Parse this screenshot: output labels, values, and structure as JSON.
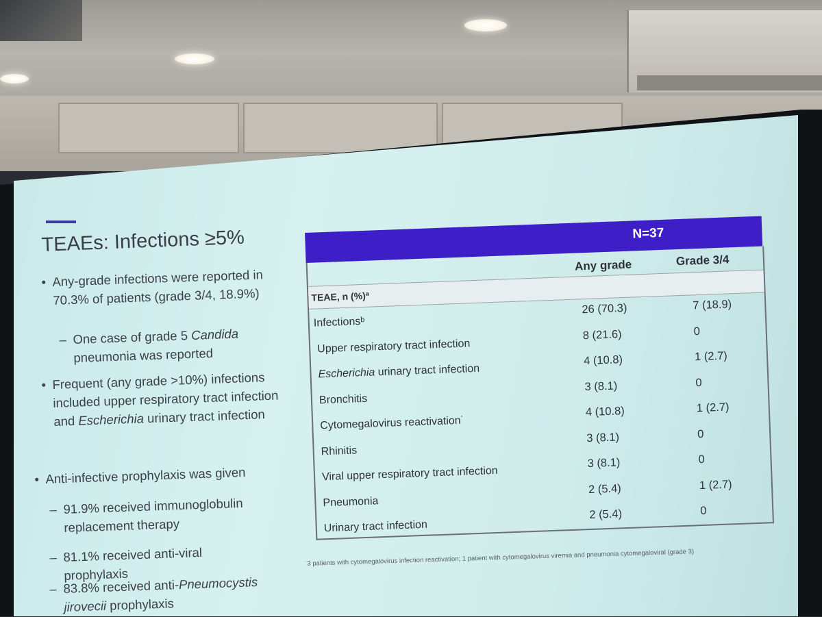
{
  "slide": {
    "title": "TEAEs: Infections ≥5%",
    "bullets": [
      {
        "level": 1,
        "text": "Any-grade infections were reported in 70.3% of patients (grade 3/4, 18.9%)"
      },
      {
        "level": 2,
        "text_before": "One case of grade 5 ",
        "italic": "Candida",
        "text_after": " pneumonia was reported"
      },
      {
        "level": 1,
        "text_before": "Frequent (any grade >10%) infections included upper respiratory tract infection and ",
        "italic": "Escherichia",
        "text_after": " urinary tract infection"
      },
      {
        "level": 1,
        "text": "Anti-infective prophylaxis was given"
      },
      {
        "level": 2,
        "text": "91.9% received immunoglobulin replacement therapy"
      },
      {
        "level": 2,
        "text": "81.1% received anti-viral prophylaxis"
      },
      {
        "level": 2,
        "text_before": "83.8% received anti-",
        "italic": "Pneumocystis jirovecii",
        "text_after": " prophylaxis"
      }
    ],
    "bullet_glyph": "•",
    "sub_glyph": "–"
  },
  "table": {
    "n_label": "N=37",
    "col_any": "Any grade",
    "col_g34": "Grade 3/4",
    "row_header": "TEAE, n (%)ª",
    "rows": [
      {
        "name": "Infectionsᵇ",
        "any": "26 (70.3)",
        "g34": "7 (18.9)"
      },
      {
        "name": "Upper respiratory tract infection",
        "any": "8 (21.6)",
        "g34": "0"
      },
      {
        "name_italic": "Escherichia",
        "name_rest": " urinary tract infection",
        "any": "4 (10.8)",
        "g34": "1 (2.7)"
      },
      {
        "name": "Bronchitis",
        "any": "3 (8.1)",
        "g34": "0"
      },
      {
        "name": "Cytomegalovirus reactivation˙",
        "any": "4 (10.8)",
        "g34": "1 (2.7)"
      },
      {
        "name": "Rhinitis",
        "any": "3 (8.1)",
        "g34": "0"
      },
      {
        "name": "Viral upper respiratory tract infection",
        "any": "3 (8.1)",
        "g34": "0"
      },
      {
        "name": "Pneumonia",
        "any": "2 (5.4)",
        "g34": "1 (2.7)"
      },
      {
        "name": "Urinary tract infection",
        "any": "2 (5.4)",
        "g34": "0"
      }
    ],
    "footnote": "˙3 patients with cytomegalovirus infection reactivation; 1 patient with cytomegalovirus viremia and pneumonia cytomegaloviral (grade 3)"
  },
  "colors": {
    "header_purple": "#3e1fc7",
    "accent_bar": "#3d3aa0",
    "slide_bg": "#d0eeee"
  }
}
